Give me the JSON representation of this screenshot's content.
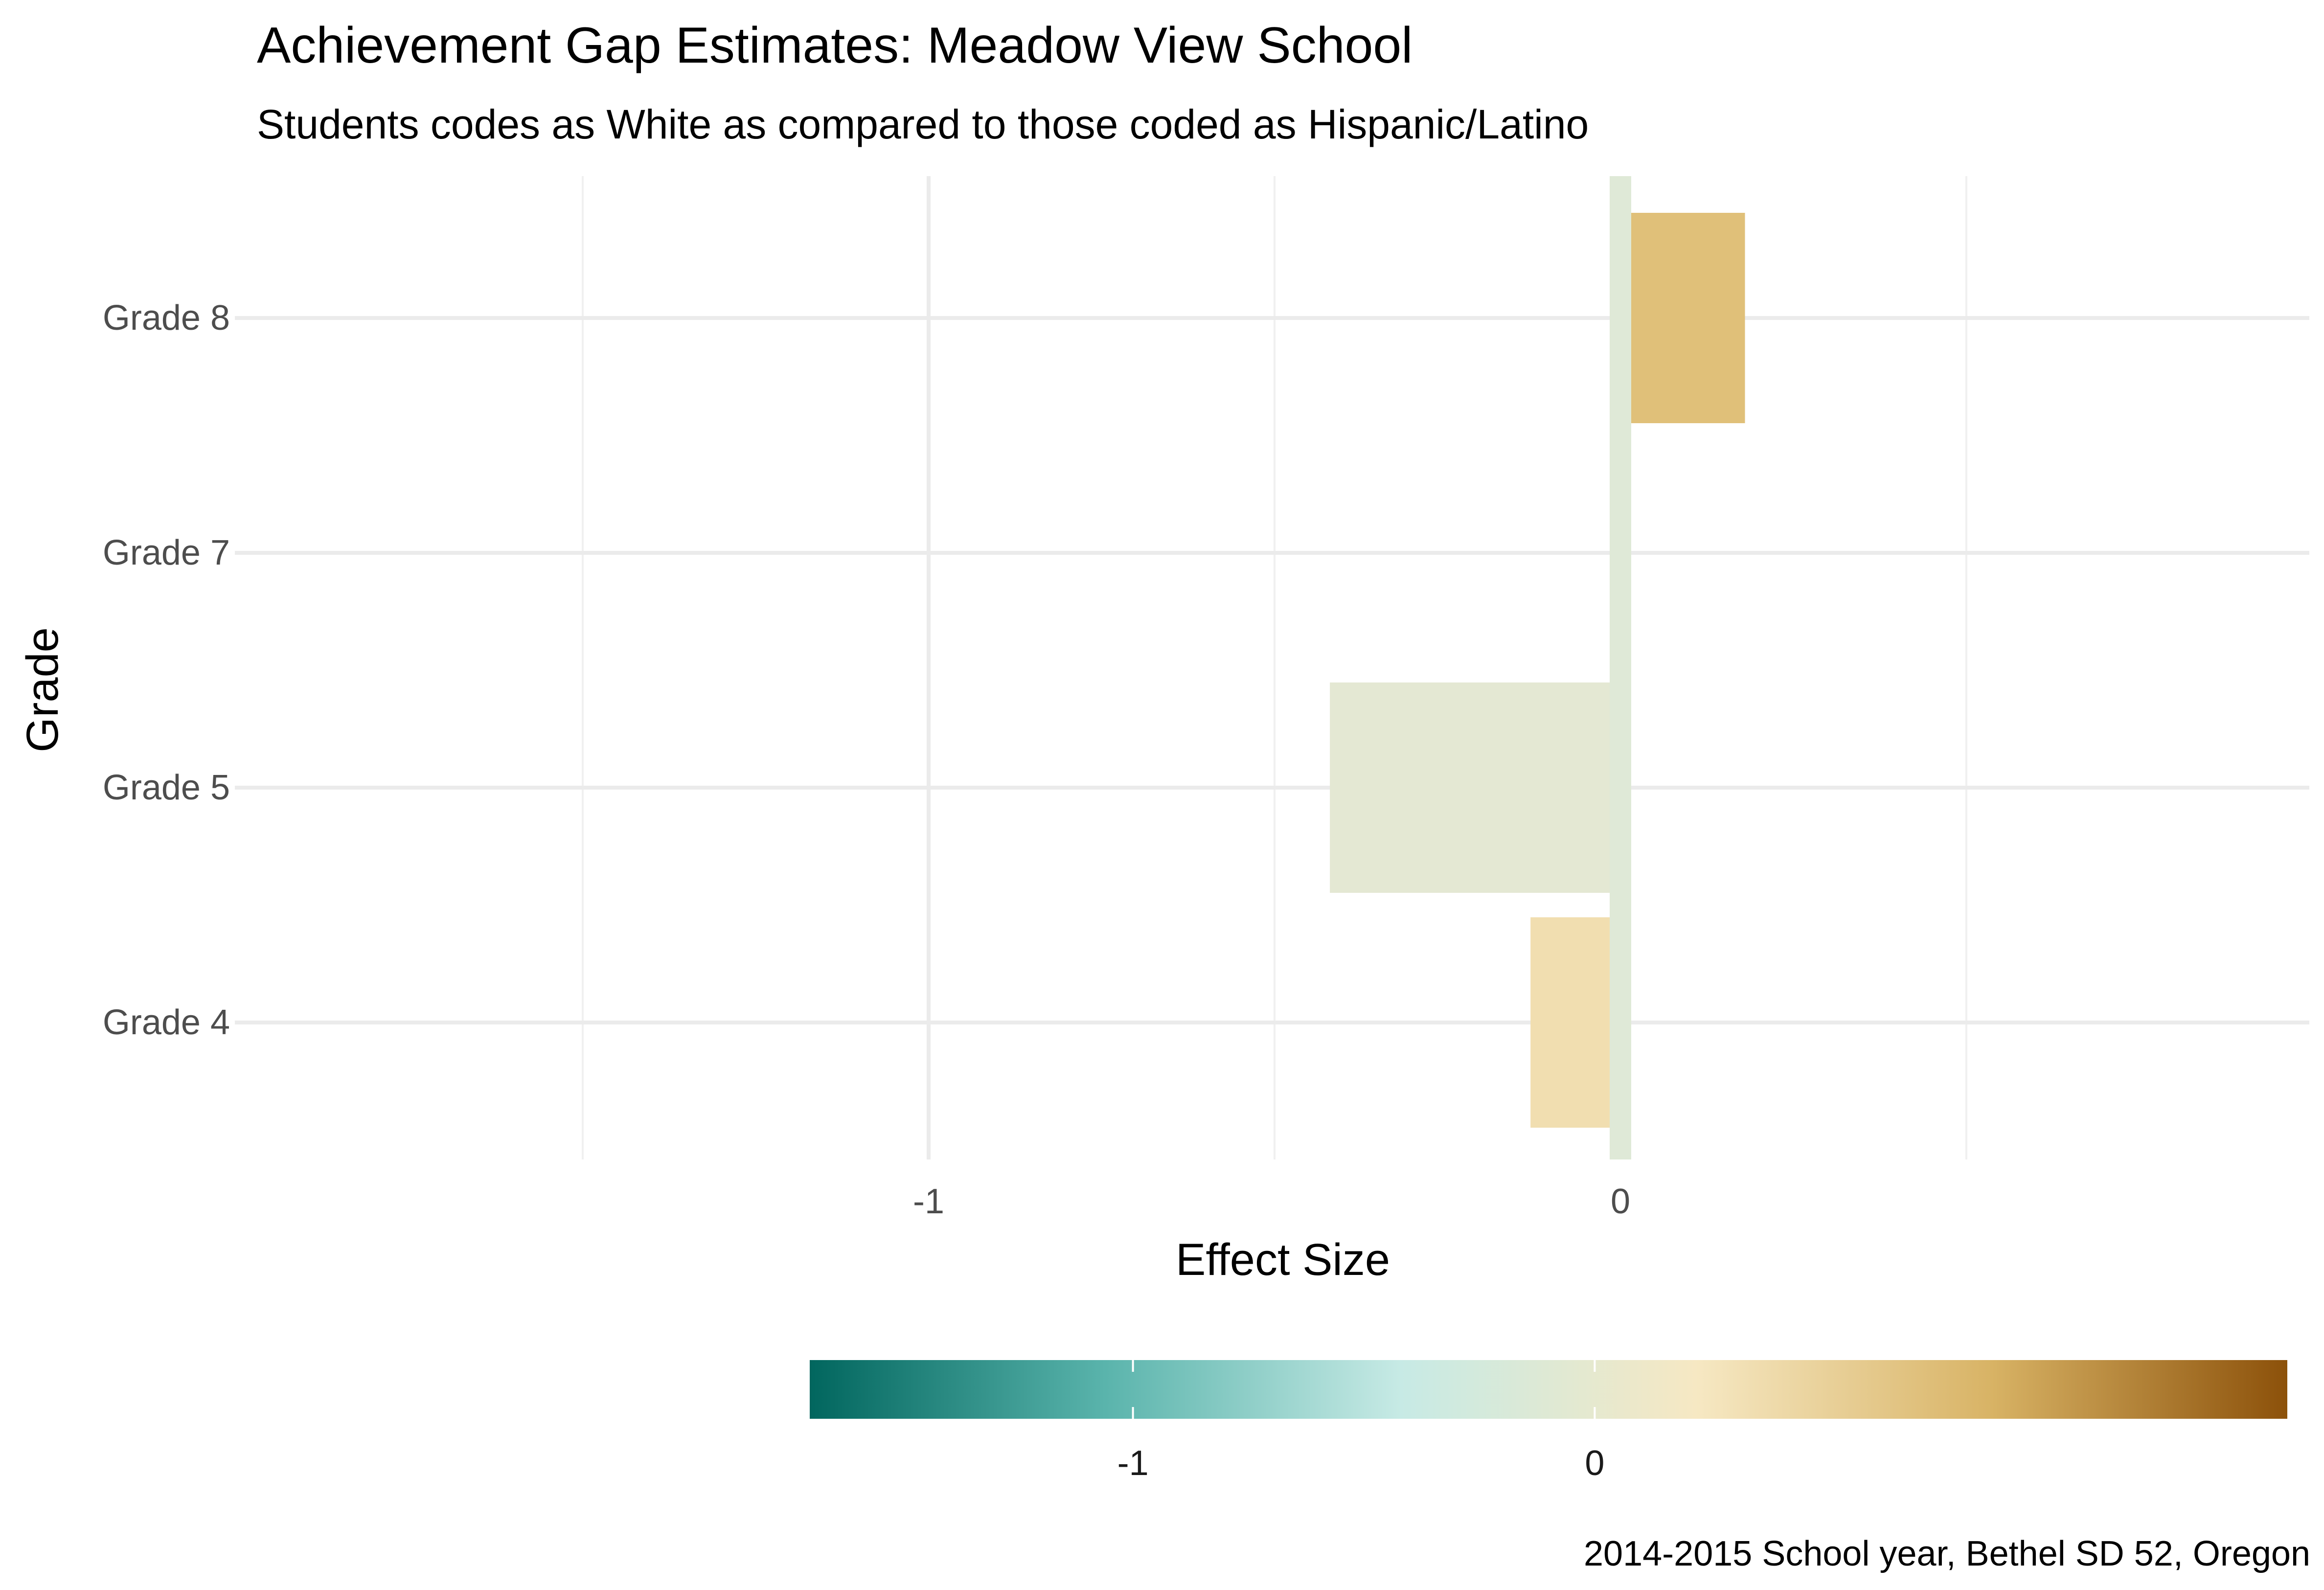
{
  "chart_data": {
    "type": "bar",
    "orientation": "horizontal",
    "title": "Achievement Gap Estimates: Meadow View School",
    "subtitle": "Students codes as White as compared to those coded as Hispanic/Latino",
    "xlabel": "Effect Size",
    "ylabel": "Grade",
    "caption": "2014-2015 School year, Bethel SD 52, Oregon",
    "categories": [
      "Grade 4",
      "Grade 5",
      "Grade 7",
      "Grade 8"
    ],
    "values": [
      -0.13,
      -0.42,
      0.0,
      0.18
    ],
    "x_ticks": [
      -1,
      0
    ],
    "x_tick_labels": [
      "-1",
      "0"
    ],
    "xlim": [
      -1.5,
      1.0
    ],
    "grid": true,
    "reference_line": {
      "value": 0,
      "color": "#dfe9d7"
    },
    "bar_colors": [
      "#f1deb0",
      "#e4e8d3",
      "#e3ebd8",
      "#e0c079"
    ],
    "legend": {
      "type": "colorbar",
      "position": "bottom",
      "range": [
        -1.7,
        1.5
      ],
      "ticks": [
        -1,
        0
      ],
      "tick_labels": [
        "-1",
        "0"
      ],
      "colors": [
        "#01665e",
        "#5ab4ac",
        "#c7eae5",
        "#f6e8c3",
        "#d8b365",
        "#8c510a"
      ]
    }
  }
}
